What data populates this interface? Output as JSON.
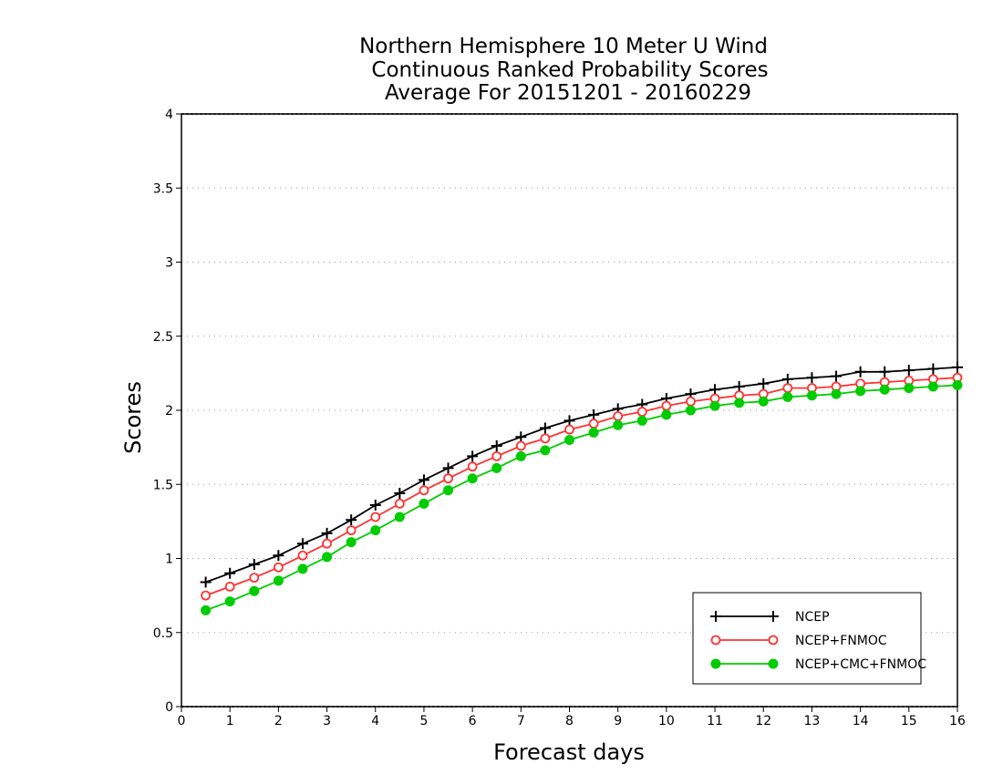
{
  "chart_data": {
    "type": "line",
    "title": [
      "Northern Hemisphere 10 Meter U Wind",
      "Continuous Ranked Probability Scores",
      "Average For 20151201 - 20160229"
    ],
    "xlabel": "Forecast days",
    "ylabel": "Scores",
    "xlim": [
      0,
      16
    ],
    "ylim": [
      0,
      4
    ],
    "xticks": [
      0,
      1,
      2,
      3,
      4,
      5,
      6,
      7,
      8,
      9,
      10,
      11,
      12,
      13,
      14,
      15,
      16
    ],
    "yticks": [
      0,
      0.5,
      1,
      1.5,
      2,
      2.5,
      3,
      3.5,
      4
    ],
    "ytick_labels": [
      "0",
      "0.5",
      "1",
      "1.5",
      "2",
      "2.5",
      "3",
      "3.5",
      "4"
    ],
    "grid": "horizontal dotted",
    "legend_position": "bottom-right",
    "x": [
      0.5,
      1,
      1.5,
      2,
      2.5,
      3,
      3.5,
      4,
      4.5,
      5,
      5.5,
      6,
      6.5,
      7,
      7.5,
      8,
      8.5,
      9,
      9.5,
      10,
      10.5,
      11,
      11.5,
      12,
      12.5,
      13,
      13.5,
      14,
      14.5,
      15,
      15.5,
      16
    ],
    "series": [
      {
        "name": "NCEP",
        "color": "#000000",
        "marker": "plus",
        "values": [
          0.84,
          0.9,
          0.96,
          1.02,
          1.1,
          1.17,
          1.26,
          1.36,
          1.44,
          1.53,
          1.61,
          1.69,
          1.76,
          1.82,
          1.88,
          1.93,
          1.97,
          2.01,
          2.04,
          2.08,
          2.11,
          2.14,
          2.16,
          2.18,
          2.21,
          2.22,
          2.23,
          2.26,
          2.26,
          2.27,
          2.28,
          2.29
        ]
      },
      {
        "name": "NCEP+FNMOC",
        "color": "#ff3333",
        "marker": "open-circle",
        "values": [
          0.75,
          0.81,
          0.87,
          0.94,
          1.02,
          1.1,
          1.19,
          1.28,
          1.37,
          1.46,
          1.54,
          1.62,
          1.69,
          1.76,
          1.81,
          1.87,
          1.91,
          1.96,
          1.99,
          2.03,
          2.06,
          2.08,
          2.1,
          2.11,
          2.15,
          2.15,
          2.16,
          2.18,
          2.19,
          2.2,
          2.21,
          2.22
        ]
      },
      {
        "name": "NCEP+CMC+FNMOC",
        "color": "#00cc00",
        "marker": "filled-circle",
        "values": [
          0.65,
          0.71,
          0.78,
          0.85,
          0.93,
          1.01,
          1.11,
          1.19,
          1.28,
          1.37,
          1.46,
          1.54,
          1.61,
          1.69,
          1.73,
          1.8,
          1.85,
          1.9,
          1.93,
          1.97,
          2.0,
          2.03,
          2.05,
          2.06,
          2.09,
          2.1,
          2.11,
          2.13,
          2.14,
          2.15,
          2.16,
          2.17
        ]
      }
    ]
  }
}
